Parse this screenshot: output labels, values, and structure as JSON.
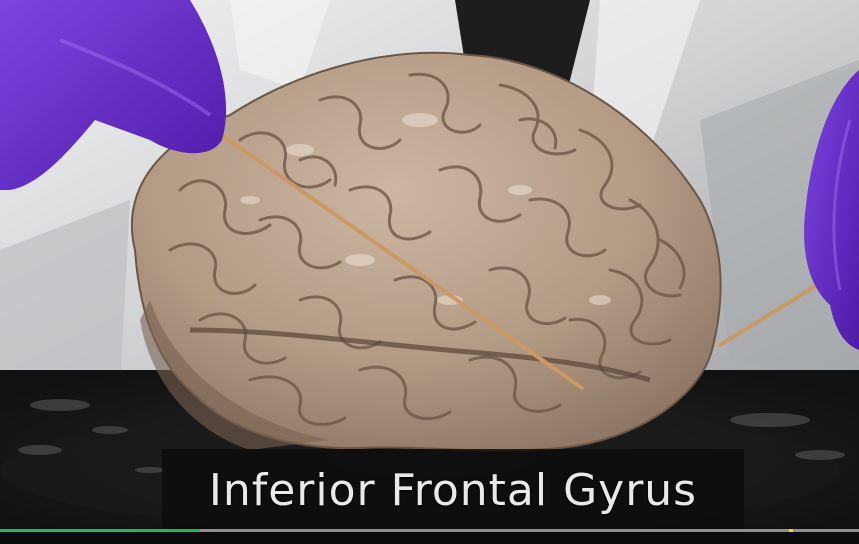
{
  "video": {
    "caption": "Inferior Frontal Gyrus",
    "progress_fraction": 0.233,
    "marker_fraction": 0.918
  },
  "colors": {
    "progress_played": "#1db954",
    "progress_marker": "#f0e200",
    "glove": "#6a2fd0",
    "brain": "#b49c88",
    "backdrop": "#e4e4e4",
    "pointer": "#c99a63"
  }
}
